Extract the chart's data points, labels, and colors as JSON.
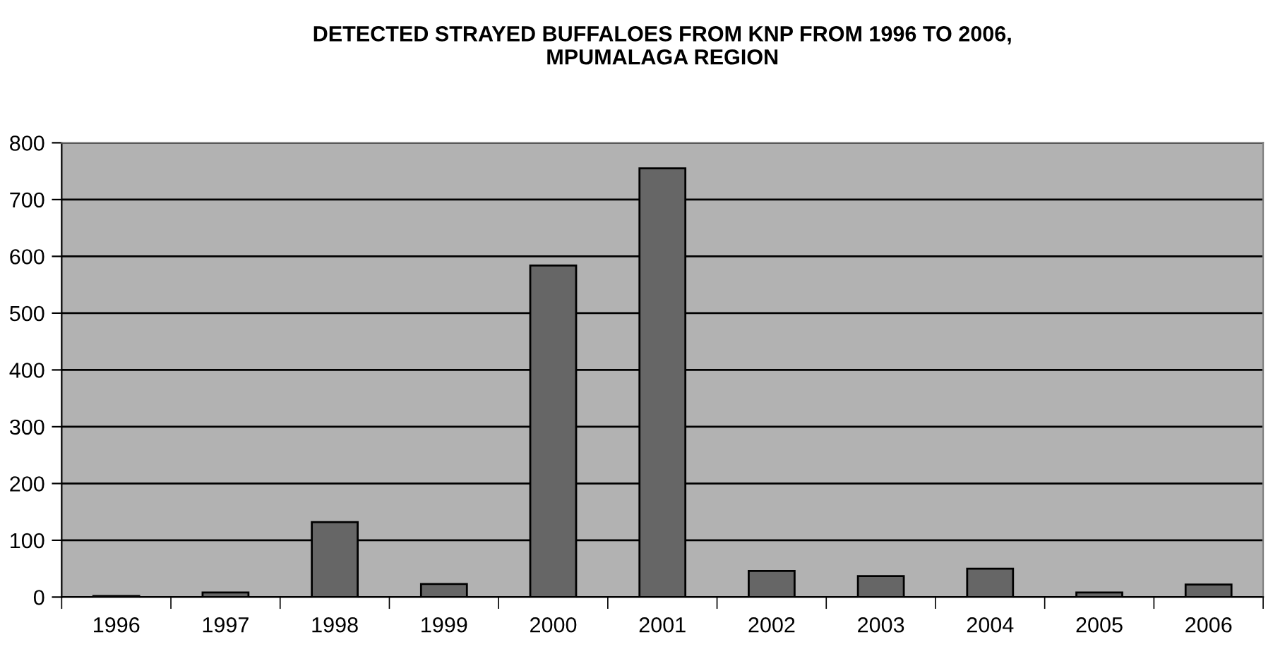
{
  "chart_data": {
    "type": "bar",
    "title": "DETECTED STRAYED BUFFALOES FROM KNP FROM 1996 TO 2006,\nMPUMALAGA REGION",
    "categories": [
      "1996",
      "1997",
      "1998",
      "1999",
      "2000",
      "2001",
      "2002",
      "2003",
      "2004",
      "2005",
      "2006"
    ],
    "values": [
      2,
      8,
      132,
      23,
      584,
      755,
      46,
      37,
      50,
      8,
      22
    ],
    "color": "#666666",
    "ylim": [
      0,
      800
    ],
    "yticks": [
      0,
      100,
      200,
      300,
      400,
      500,
      600,
      700,
      800
    ],
    "grid": "y"
  }
}
